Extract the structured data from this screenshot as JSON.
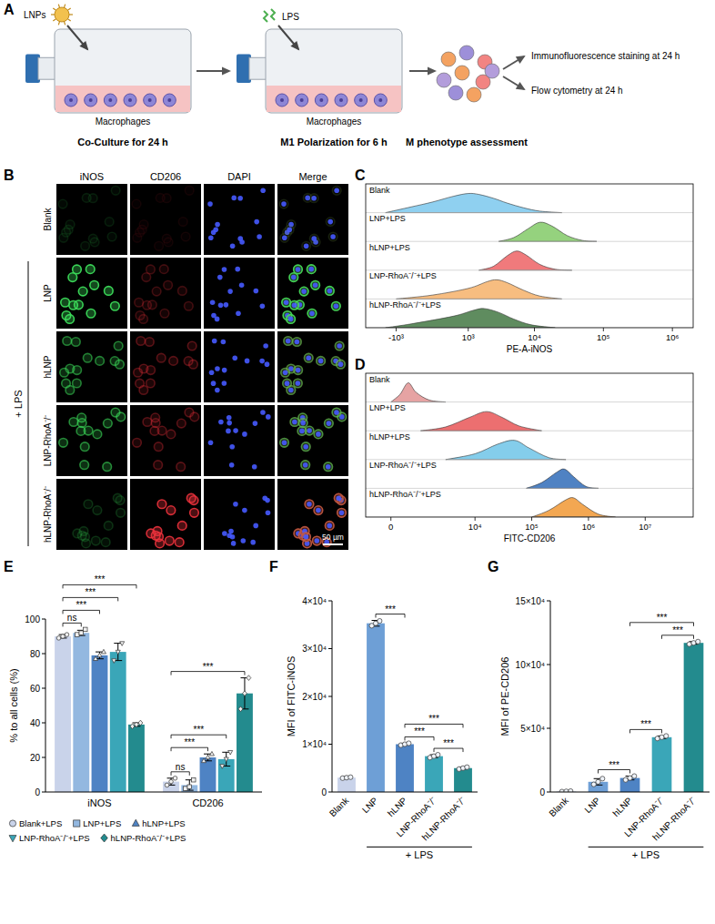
{
  "panel_a": {
    "letter": "A",
    "steps": [
      {
        "reagent": "LNPs",
        "cells": "Macrophages",
        "caption": "Co-Culture for 24 h"
      },
      {
        "reagent": "LPS",
        "cells": "Macrophages",
        "caption": "M1 Polarization for 6 h"
      }
    ],
    "assessment": {
      "caption": "M phenotype assessment",
      "outputs": [
        "Immunofluorescence staining at 24 h",
        "Flow cytometry at 24 h"
      ]
    }
  },
  "panel_b": {
    "letter": "B",
    "columns": [
      "iNOS",
      "CD206",
      "DAPI",
      "Merge"
    ],
    "rows": [
      "Blank",
      "LNP",
      "hLNP",
      "LNP-RhoA⁻/⁻",
      "hLNP-RhoA⁻/⁻"
    ],
    "group_label": "+ LPS",
    "scale_bar": "50 µm"
  },
  "chart_data": [
    {
      "panel": "C",
      "type": "ridgeline",
      "x_label": "PE-A-iNOS",
      "xlim": [
        -3000,
        2000000
      ],
      "xticks": [
        {
          "value": -1000,
          "label": "-10³"
        },
        {
          "value": 1000,
          "label": "10³"
        },
        {
          "value": 10000,
          "label": "10⁴"
        },
        {
          "value": 100000,
          "label": "10⁵"
        },
        {
          "value": 1000000,
          "label": "10⁶"
        }
      ],
      "ylim": [
        0,
        1.5
      ],
      "tick_labels": "x",
      "series": [
        {
          "name": "Blank",
          "color": "#8fd0f0",
          "x": [
            -1500,
            -500,
            0,
            500,
            1000,
            1500,
            2500,
            4000,
            7000,
            12000,
            25000
          ],
          "values": [
            0,
            0.3,
            0.55,
            0.85,
            1,
            0.95,
            0.75,
            0.5,
            0.25,
            0.08,
            0
          ]
        },
        {
          "name": "LNP+LPS",
          "color": "#95d27e",
          "x": [
            3000,
            5000,
            8000,
            12000,
            18000,
            30000,
            50000,
            80000
          ],
          "values": [
            0,
            0.2,
            0.65,
            1,
            0.8,
            0.3,
            0.05,
            0
          ]
        },
        {
          "name": "hLNP+LPS",
          "color": "#f07a7c",
          "x": [
            1500,
            2500,
            4000,
            5500,
            7500,
            12000,
            20000,
            35000
          ],
          "values": [
            0,
            0.2,
            0.75,
            1,
            0.8,
            0.3,
            0.05,
            0
          ]
        },
        {
          "name": "LNP-RhoA⁻/⁻+LPS",
          "color": "#f7bd80",
          "x": [
            -1000,
            0,
            1000,
            2000,
            2800,
            4000,
            7000,
            12000,
            25000
          ],
          "values": [
            0,
            0.2,
            0.55,
            0.9,
            1,
            0.85,
            0.45,
            0.15,
            0
          ]
        },
        {
          "name": "hLNP-RhoA⁻/⁻+LPS",
          "color": "#5f8c5f",
          "x": [
            -1500,
            -500,
            500,
            1200,
            1800,
            3000,
            5000,
            9000,
            20000
          ],
          "values": [
            0,
            0.2,
            0.6,
            0.9,
            1,
            0.8,
            0.45,
            0.15,
            0
          ]
        }
      ]
    },
    {
      "panel": "D",
      "type": "ridgeline",
      "x_label": "FITC-CD206",
      "xlim": [
        -800,
        70000000
      ],
      "xticks": [
        0,
        {
          "value": 10000,
          "label": "10⁴"
        },
        {
          "value": 100000,
          "label": "10⁵"
        },
        {
          "value": 1000000,
          "label": "10⁶"
        },
        {
          "value": 10000000,
          "label": "10⁷"
        }
      ],
      "ylim": [
        0,
        1.5
      ],
      "tick_labels": "x",
      "series": [
        {
          "name": "Blank",
          "color": "#e6a3a3",
          "x": [
            0,
            250,
            500,
            800,
            1500,
            3000
          ],
          "values": [
            0,
            0.4,
            1,
            0.5,
            0.1,
            0
          ]
        },
        {
          "name": "LNP+LPS",
          "color": "#ec6f70",
          "x": [
            1000,
            3000,
            8000,
            16000,
            30000,
            60000,
            150000
          ],
          "values": [
            0,
            0.2,
            0.7,
            1,
            0.7,
            0.25,
            0
          ]
        },
        {
          "name": "hLNP+LPS",
          "color": "#84cdeb",
          "x": [
            3000,
            10000,
            25000,
            50000,
            90000,
            200000,
            400000
          ],
          "values": [
            0,
            0.3,
            0.8,
            1,
            0.6,
            0.1,
            0
          ]
        },
        {
          "name": "LNP-RhoA⁻/⁻+LPS",
          "color": "#4f82c3",
          "x": [
            80000,
            150000,
            280000,
            380000,
            550000,
            900000,
            1500000
          ],
          "values": [
            0,
            0.3,
            0.85,
            1,
            0.6,
            0.1,
            0
          ]
        },
        {
          "name": "hLNP-RhoA⁻/⁻+LPS",
          "color": "#f3a752",
          "x": [
            100000,
            200000,
            400000,
            550000,
            800000,
            1500000,
            3000000
          ],
          "values": [
            0,
            0.35,
            0.9,
            1,
            0.65,
            0.15,
            0
          ]
        }
      ]
    },
    {
      "panel": "E",
      "type": "bar",
      "y_label": "% to all cells (%)",
      "categories": [
        "iNOS",
        "CD206"
      ],
      "ylim": [
        0,
        100
      ],
      "yticks": [
        0,
        20,
        40,
        60,
        80,
        100
      ],
      "legend": "bottom",
      "series": [
        {
          "name": "Blank+LPS",
          "color": "#c9d3ea",
          "marker": "circle",
          "values": [
            90,
            6
          ],
          "errors": [
            1,
            2
          ],
          "points": [
            [
              89,
              90,
              91
            ],
            [
              4,
              6,
              8
            ]
          ]
        },
        {
          "name": "LNP+LPS",
          "color": "#93b8e0",
          "marker": "square",
          "values": [
            92,
            4
          ],
          "errors": [
            1.5,
            3
          ],
          "points": [
            [
              91,
              92,
              94
            ],
            [
              2,
              3,
              7
            ]
          ]
        },
        {
          "name": "hLNP+LPS",
          "color": "#4e83c4",
          "marker": "triangle",
          "values": [
            79,
            20
          ],
          "errors": [
            2,
            2
          ],
          "points": [
            [
              77,
              79,
              81
            ],
            [
              18,
              20,
              22
            ]
          ]
        },
        {
          "name": "LNP-RhoA⁻/⁻+LPS",
          "color": "#3aa6b8",
          "marker": "triangle-down",
          "values": [
            81,
            19
          ],
          "errors": [
            5,
            4
          ],
          "points": [
            [
              76,
              81,
              86
            ],
            [
              15,
              19,
              23
            ]
          ]
        },
        {
          "name": "hLNP-RhoA⁻/⁻+LPS",
          "color": "#238b8e",
          "marker": "diamond",
          "values": [
            39,
            57
          ],
          "errors": [
            1,
            9
          ],
          "points": [
            [
              38,
              39,
              40
            ],
            [
              48,
              57,
              66
            ]
          ]
        }
      ],
      "comparisons": [
        {
          "category": 0,
          "from": 0,
          "to": 1,
          "label": "ns"
        },
        {
          "category": 0,
          "from": 0,
          "to": 2,
          "label": "***"
        },
        {
          "category": 0,
          "from": 0,
          "to": 3,
          "label": "***"
        },
        {
          "category": 0,
          "from": 0,
          "to": 4,
          "label": "***"
        },
        {
          "category": 1,
          "from": 0,
          "to": 1,
          "label": "ns"
        },
        {
          "category": 1,
          "from": 0,
          "to": 2,
          "label": "***"
        },
        {
          "category": 1,
          "from": 0,
          "to": 3,
          "label": "***"
        },
        {
          "category": 1,
          "from": 0,
          "to": 4,
          "label": "***"
        }
      ]
    },
    {
      "panel": "F",
      "type": "bar",
      "y_label": "MFI of FITC-iNOS",
      "categories": [
        "Blank",
        "LNP",
        "hLNP",
        "LNP-RhoA⁻/⁻",
        "hLNP-RhoA⁻/⁻"
      ],
      "group_label": "+ LPS",
      "colors": [
        "#c9d3ea",
        "#6e9fd6",
        "#4e83c4",
        "#3aa6b8",
        "#238b8e"
      ],
      "marker": "circle",
      "values": [
        3000,
        35300,
        10000,
        7500,
        5000
      ],
      "errors": [
        200,
        600,
        200,
        300,
        200
      ],
      "points": [
        [
          2900,
          3000,
          3100
        ],
        [
          34800,
          35300,
          35800
        ],
        [
          9800,
          10000,
          10200
        ],
        [
          7200,
          7500,
          7800
        ],
        [
          4800,
          5000,
          5200
        ]
      ],
      "ylim": [
        0,
        40000
      ],
      "yticks": [
        0,
        {
          "value": 10000,
          "label": "1×10⁴"
        },
        {
          "value": 20000,
          "label": "2×10⁴"
        },
        {
          "value": 30000,
          "label": "3×10⁴"
        },
        {
          "value": 40000,
          "label": "4×10⁴"
        }
      ],
      "comparisons": [
        {
          "from": 1,
          "to": 2,
          "label": "***"
        },
        {
          "from": 2,
          "to": 3,
          "label": "***"
        },
        {
          "from": 3,
          "to": 4,
          "label": "***"
        },
        {
          "from": 2,
          "to": 4,
          "label": "***"
        }
      ]
    },
    {
      "panel": "G",
      "type": "bar",
      "y_label": "MFI of PE-CD206",
      "categories": [
        "Blank",
        "LNP",
        "hLNP",
        "LNP-RhoA⁻/⁻",
        "hLNP-RhoA⁻/⁻"
      ],
      "group_label": "+ LPS",
      "colors": [
        "#c9d3ea",
        "#6e9fd6",
        "#4e83c4",
        "#3aa6b8",
        "#238b8e"
      ],
      "marker": "circle",
      "values": [
        500,
        8000,
        11000,
        43000,
        117000
      ],
      "errors": [
        300,
        2500,
        1500,
        1000,
        1000
      ],
      "points": [
        [
          300,
          500,
          700
        ],
        [
          6000,
          8000,
          10500
        ],
        [
          9500,
          11000,
          12500
        ],
        [
          42000,
          43000,
          44000
        ],
        [
          116000,
          117000,
          118000
        ]
      ],
      "ylim": [
        0,
        150000
      ],
      "yticks": [
        0,
        {
          "value": 50000,
          "label": "5×10⁴"
        },
        {
          "value": 100000,
          "label": "10×10⁴"
        },
        {
          "value": 150000,
          "label": "15×10⁴"
        }
      ],
      "comparisons": [
        {
          "from": 1,
          "to": 2,
          "label": "***"
        },
        {
          "from": 2,
          "to": 3,
          "label": "***"
        },
        {
          "from": 3,
          "to": 4,
          "label": "***"
        },
        {
          "from": 2,
          "to": 4,
          "label": "***"
        }
      ]
    }
  ]
}
